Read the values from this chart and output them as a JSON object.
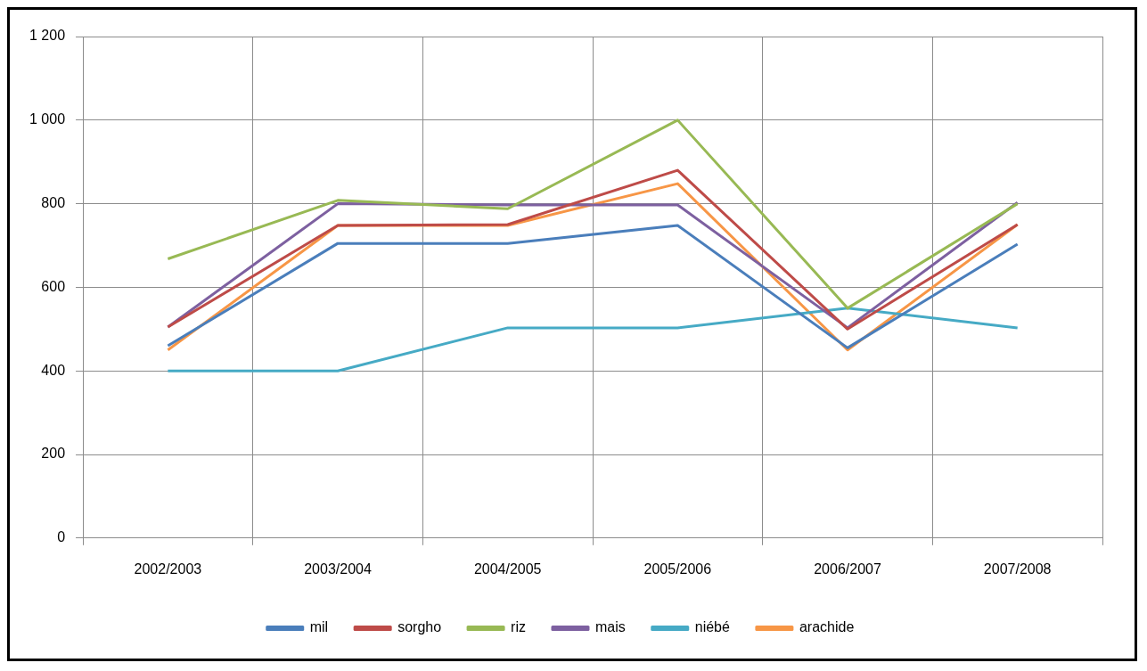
{
  "chart_data": {
    "type": "line",
    "categories": [
      "2002/2003",
      "2003/2004",
      "2004/2005",
      "2005/2006",
      "2006/2007",
      "2007/2008"
    ],
    "series": [
      {
        "name": "mil",
        "color": "#4a7ebb",
        "values": [
          460,
          705,
          705,
          748,
          455,
          703
        ]
      },
      {
        "name": "sorgho",
        "color": "#be4b48",
        "values": [
          505,
          748,
          750,
          880,
          500,
          750
        ]
      },
      {
        "name": "riz",
        "color": "#98b954",
        "values": [
          668,
          808,
          788,
          1000,
          550,
          800
        ]
      },
      {
        "name": "mais",
        "color": "#7d60a0",
        "values": [
          505,
          800,
          797,
          797,
          503,
          803
        ]
      },
      {
        "name": "niébé",
        "color": "#46aac5",
        "values": [
          400,
          400,
          503,
          503,
          550,
          503
        ]
      },
      {
        "name": "arachide",
        "color": "#f79646",
        "values": [
          450,
          748,
          748,
          848,
          450,
          750
        ]
      }
    ],
    "ylim": [
      0,
      1200
    ],
    "yticks": [
      0,
      200,
      400,
      600,
      800,
      {
        "value": 1000,
        "label": "1 000"
      },
      {
        "value": 1200,
        "label": "1 200"
      }
    ],
    "grid": true,
    "legend": "bottom",
    "marker": "none",
    "line_style": "solid"
  }
}
